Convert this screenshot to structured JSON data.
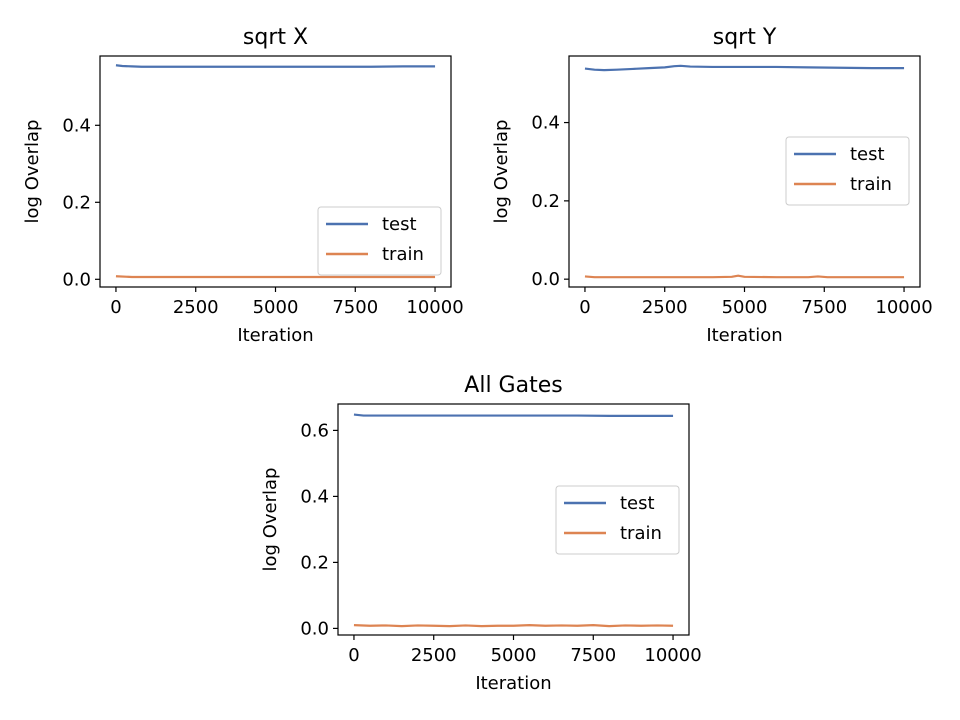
{
  "chart_data": [
    {
      "type": "line",
      "title": "sqrt X",
      "xlabel": "Iteration",
      "ylabel": "log Overlap",
      "xlim": [
        -500,
        10500
      ],
      "ylim": [
        -0.02,
        0.58
      ],
      "xticks": [
        0,
        2500,
        5000,
        7500,
        10000
      ],
      "xtick_labels": [
        "0",
        "2500",
        "5000",
        "7500",
        "10000"
      ],
      "yticks": [
        0.0,
        0.2,
        0.4
      ],
      "ytick_labels": [
        "0.0",
        "0.2",
        "0.4"
      ],
      "legend_loc": "lower-right",
      "series": [
        {
          "name": "test",
          "color": "#4c72b0",
          "x": [
            0,
            200,
            500,
            800,
            1000,
            2000,
            3000,
            4000,
            5000,
            6000,
            7000,
            7500,
            8000,
            9000,
            10000
          ],
          "y": [
            0.556,
            0.554,
            0.553,
            0.552,
            0.552,
            0.552,
            0.552,
            0.552,
            0.552,
            0.552,
            0.552,
            0.552,
            0.552,
            0.553,
            0.553
          ]
        },
        {
          "name": "train",
          "color": "#dd8452",
          "x": [
            0,
            500,
            1000,
            2000,
            3000,
            4000,
            5000,
            6000,
            7000,
            8000,
            9000,
            10000
          ],
          "y": [
            0.008,
            0.006,
            0.006,
            0.006,
            0.006,
            0.006,
            0.006,
            0.006,
            0.006,
            0.006,
            0.006,
            0.006
          ]
        }
      ]
    },
    {
      "type": "line",
      "title": "sqrt Y",
      "xlabel": "Iteration",
      "ylabel": "log Overlap",
      "xlim": [
        -500,
        10500
      ],
      "ylim": [
        -0.02,
        0.57
      ],
      "xticks": [
        0,
        2500,
        5000,
        7500,
        10000
      ],
      "xtick_labels": [
        "0",
        "2500",
        "5000",
        "7500",
        "10000"
      ],
      "yticks": [
        0.0,
        0.2,
        0.4
      ],
      "ytick_labels": [
        "0.0",
        "0.2",
        "0.4"
      ],
      "legend_loc": "center-right",
      "series": [
        {
          "name": "test",
          "color": "#4c72b0",
          "x": [
            0,
            300,
            600,
            1000,
            1500,
            2000,
            2500,
            2800,
            3000,
            3300,
            4000,
            5000,
            6000,
            7000,
            8000,
            9000,
            10000
          ],
          "y": [
            0.538,
            0.535,
            0.534,
            0.535,
            0.537,
            0.539,
            0.541,
            0.544,
            0.545,
            0.543,
            0.542,
            0.542,
            0.542,
            0.541,
            0.54,
            0.539,
            0.539
          ]
        },
        {
          "name": "train",
          "color": "#dd8452",
          "x": [
            0,
            300,
            1000,
            2000,
            3000,
            4000,
            4600,
            4800,
            5000,
            6000,
            7000,
            7300,
            7600,
            8000,
            9000,
            10000
          ],
          "y": [
            0.007,
            0.005,
            0.005,
            0.005,
            0.005,
            0.005,
            0.006,
            0.009,
            0.006,
            0.005,
            0.005,
            0.007,
            0.005,
            0.005,
            0.005,
            0.005
          ]
        }
      ]
    },
    {
      "type": "line",
      "title": "All Gates",
      "xlabel": "Iteration",
      "ylabel": "log Overlap",
      "xlim": [
        -500,
        10500
      ],
      "ylim": [
        -0.02,
        0.68
      ],
      "xticks": [
        0,
        2500,
        5000,
        7500,
        10000
      ],
      "xtick_labels": [
        "0",
        "2500",
        "5000",
        "7500",
        "10000"
      ],
      "yticks": [
        0.0,
        0.2,
        0.4,
        0.6
      ],
      "ytick_labels": [
        "0.0",
        "0.2",
        "0.4",
        "0.6"
      ],
      "legend_loc": "center-right",
      "series": [
        {
          "name": "test",
          "color": "#4c72b0",
          "x": [
            0,
            300,
            1000,
            2000,
            3000,
            4000,
            5000,
            6000,
            7000,
            8000,
            9000,
            10000
          ],
          "y": [
            0.648,
            0.645,
            0.645,
            0.645,
            0.645,
            0.645,
            0.645,
            0.645,
            0.645,
            0.644,
            0.644,
            0.644
          ]
        },
        {
          "name": "train",
          "color": "#dd8452",
          "x": [
            0,
            500,
            1000,
            1500,
            2000,
            2500,
            3000,
            3500,
            4000,
            4500,
            5000,
            5500,
            6000,
            6500,
            7000,
            7500,
            8000,
            8500,
            9000,
            9500,
            10000
          ],
          "y": [
            0.01,
            0.008,
            0.009,
            0.007,
            0.009,
            0.008,
            0.007,
            0.009,
            0.007,
            0.008,
            0.008,
            0.01,
            0.008,
            0.009,
            0.008,
            0.01,
            0.007,
            0.009,
            0.008,
            0.009,
            0.008
          ]
        }
      ]
    }
  ]
}
